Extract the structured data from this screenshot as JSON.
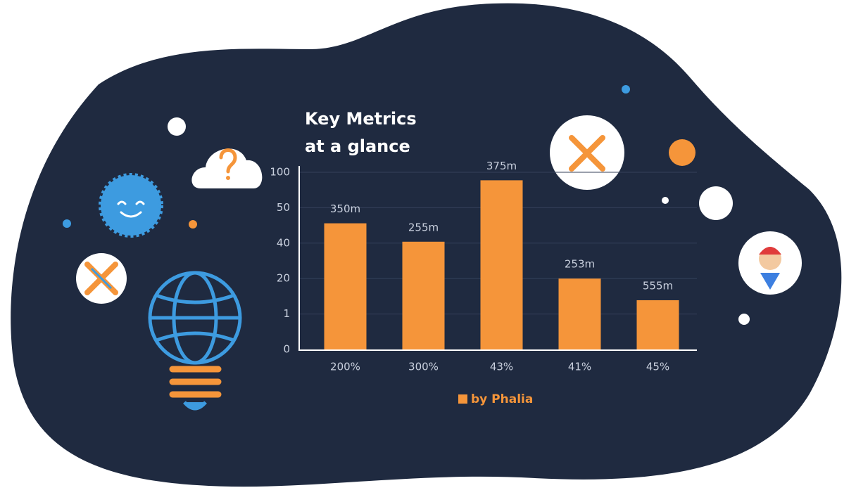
{
  "chart_data": {
    "type": "bar",
    "title": "Key Metrics",
    "subtitle": "at a glance",
    "categories": [
      "200%",
      "300%",
      "43%",
      "41%",
      "45%"
    ],
    "series": [
      {
        "name": "by Phalia",
        "color": "#f5953a",
        "values": [
          45.6,
          40.4,
          88.7,
          20,
          8.4
        ]
      }
    ],
    "bar_labels": [
      "350m",
      "255m",
      "375m",
      "253m",
      "555m"
    ],
    "ylim": [
      0,
      100
    ],
    "yticks": [
      0,
      1,
      20,
      40,
      50,
      100
    ],
    "grid": true
  }
}
